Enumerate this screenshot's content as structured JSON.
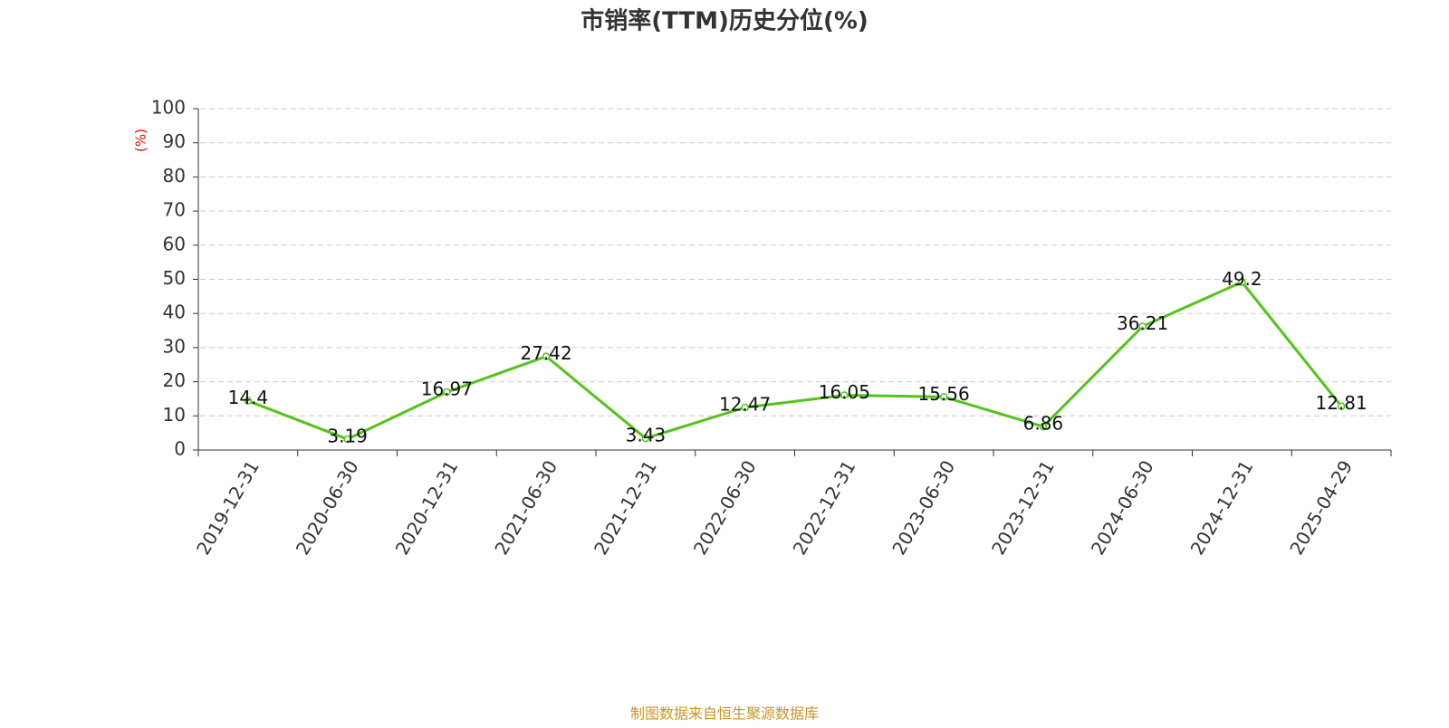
{
  "chart_data": {
    "type": "line",
    "title": "市销率(TTM)历史分位(%)",
    "y_label": "(%)",
    "categories": [
      "2019-12-31",
      "2020-06-30",
      "2020-12-31",
      "2021-06-30",
      "2021-12-31",
      "2022-06-30",
      "2022-12-31",
      "2023-06-30",
      "2023-12-31",
      "2024-06-30",
      "2024-12-31",
      "2025-04-29"
    ],
    "values": [
      14.4,
      3.19,
      16.97,
      27.42,
      3.43,
      12.47,
      16.05,
      15.56,
      6.86,
      36.21,
      49.2,
      12.81
    ],
    "color": "#52c41a",
    "ylim": [
      0,
      100
    ],
    "yticks": [
      0,
      10,
      20,
      30,
      40,
      50,
      60,
      70,
      80,
      90,
      100
    ],
    "grid": true,
    "source": "制图数据来自恒生聚源数据库"
  }
}
